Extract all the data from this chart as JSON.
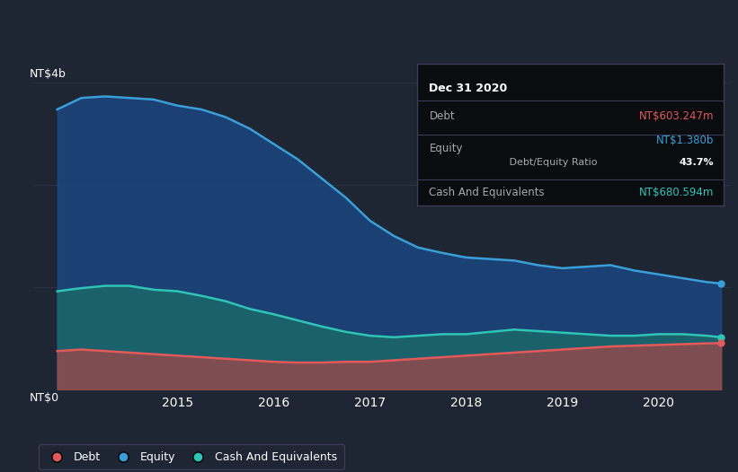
{
  "bg_color": "#1e2533",
  "plot_bg_color": "#1e2533",
  "grid_color": "#2a3145",
  "tooltip_bg": "#0a0c10",
  "tooltip_border": "#3a3d55",
  "tooltip_title": "Dec 31 2020",
  "debt_label": "Debt",
  "equity_label": "Equity",
  "cash_label": "Cash And Equivalents",
  "debt_value": "NT$603.247m",
  "equity_value": "NT$1.380b",
  "de_ratio": "43.7%",
  "de_ratio_text": " Debt/Equity Ratio",
  "cash_value": "NT$680.594m",
  "debt_color": "#e05a5a",
  "equity_color": "#3a9fd9",
  "cash_color": "#2ec4b6",
  "equity_fill": "#1a4a8a",
  "cash_fill": "#1a6a6a",
  "debt_fill": "#c04040",
  "ylabel_top": "NT$4b",
  "ylabel_bot": "NT$0",
  "xtick_labels": [
    "2015",
    "2016",
    "2017",
    "2018",
    "2019",
    "2020"
  ],
  "legend_labels": [
    "Debt",
    "Equity",
    "Cash And Equivalents"
  ],
  "years": [
    2013.75,
    2014.0,
    2014.25,
    2014.5,
    2014.75,
    2015.0,
    2015.25,
    2015.5,
    2015.75,
    2016.0,
    2016.25,
    2016.5,
    2016.75,
    2017.0,
    2017.25,
    2017.5,
    2017.75,
    2018.0,
    2018.25,
    2018.5,
    2018.75,
    2019.0,
    2019.25,
    2019.5,
    2019.75,
    2020.0,
    2020.25,
    2020.5,
    2020.65
  ],
  "equity": [
    3.65,
    3.8,
    3.82,
    3.8,
    3.78,
    3.7,
    3.65,
    3.55,
    3.4,
    3.2,
    3.0,
    2.75,
    2.5,
    2.2,
    2.0,
    1.85,
    1.78,
    1.72,
    1.7,
    1.68,
    1.62,
    1.58,
    1.6,
    1.62,
    1.55,
    1.5,
    1.45,
    1.4,
    1.38
  ],
  "cash": [
    1.28,
    1.32,
    1.35,
    1.35,
    1.3,
    1.28,
    1.22,
    1.15,
    1.05,
    0.98,
    0.9,
    0.82,
    0.75,
    0.7,
    0.68,
    0.7,
    0.72,
    0.72,
    0.75,
    0.78,
    0.76,
    0.74,
    0.72,
    0.7,
    0.7,
    0.72,
    0.72,
    0.7,
    0.68
  ],
  "debt": [
    0.5,
    0.52,
    0.5,
    0.48,
    0.46,
    0.44,
    0.42,
    0.4,
    0.38,
    0.36,
    0.35,
    0.35,
    0.36,
    0.36,
    0.38,
    0.4,
    0.42,
    0.44,
    0.46,
    0.48,
    0.5,
    0.52,
    0.54,
    0.56,
    0.57,
    0.58,
    0.59,
    0.6,
    0.603
  ]
}
